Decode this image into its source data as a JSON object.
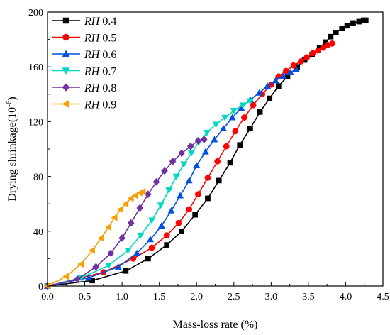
{
  "chart_data": {
    "type": "line",
    "xlabel": "Mass-loss rate (%)",
    "ylabel_main": "Drying shrinkage(10",
    "ylabel_sup": "-6",
    "ylabel_close": ")",
    "xlim": [
      0,
      4.5
    ],
    "ylim": [
      0,
      200
    ],
    "x_ticks": [
      0.0,
      0.5,
      1.0,
      1.5,
      2.0,
      2.5,
      3.0,
      3.5,
      4.0,
      4.5
    ],
    "x_tick_labels": [
      "0.0",
      "0.5",
      "1.0",
      "1.5",
      "2.0",
      "2.5",
      "3.0",
      "3.5",
      "4.0",
      "4.5"
    ],
    "y_ticks": [
      0,
      40,
      80,
      120,
      160,
      200
    ],
    "y_tick_labels": [
      "0",
      "40",
      "80",
      "120",
      "160",
      "200"
    ],
    "grid": false,
    "legend_position": "top-left",
    "series": [
      {
        "name": "0.4",
        "prefix": "RH",
        "color": "#000000",
        "marker": "square",
        "x": [
          0.0,
          0.6,
          1.05,
          1.35,
          1.6,
          1.8,
          1.98,
          2.15,
          2.3,
          2.45,
          2.58,
          2.72,
          2.85,
          2.98,
          3.1,
          3.22,
          3.35,
          3.45,
          3.55,
          3.65,
          3.73,
          3.8,
          3.87,
          3.95,
          4.02,
          4.1,
          4.18,
          4.24,
          4.27
        ],
        "y": [
          0,
          4,
          11,
          20,
          30,
          40,
          52,
          64,
          77,
          90,
          103,
          115,
          127,
          137,
          146,
          153,
          160,
          165,
          169,
          174,
          178,
          182,
          185,
          188,
          190,
          192,
          193,
          194,
          194
        ]
      },
      {
        "name": "0.5",
        "prefix": "RH",
        "color": "#ff0000",
        "marker": "circle",
        "x": [
          0.0,
          0.75,
          1.15,
          1.4,
          1.6,
          1.76,
          1.9,
          2.02,
          2.15,
          2.28,
          2.4,
          2.52,
          2.64,
          2.76,
          2.88,
          3.0,
          3.1,
          3.2,
          3.3,
          3.4,
          3.48,
          3.56,
          3.63,
          3.7,
          3.76,
          3.82
        ],
        "y": [
          0,
          10,
          20,
          28,
          37,
          46,
          56,
          67,
          79,
          91,
          102,
          113,
          123,
          132,
          140,
          147,
          153,
          157,
          161,
          164,
          167,
          170,
          172,
          174,
          176,
          177
        ]
      },
      {
        "name": "0.6",
        "prefix": "RH",
        "color": "#0050e0",
        "marker": "triangle-up",
        "x": [
          0.0,
          0.55,
          0.95,
          1.2,
          1.38,
          1.53,
          1.66,
          1.78,
          1.9,
          2.0,
          2.12,
          2.24,
          2.36,
          2.48,
          2.6,
          2.72,
          2.84,
          2.95,
          3.06,
          3.16,
          3.26,
          3.34
        ],
        "y": [
          0,
          6,
          14,
          24,
          34,
          44,
          55,
          66,
          77,
          88,
          98,
          107,
          115,
          123,
          130,
          136,
          141,
          146,
          150,
          153,
          156,
          158
        ]
      },
      {
        "name": "0.7",
        "prefix": "RH",
        "color": "#00d8c0",
        "marker": "triangle-down",
        "x": [
          0.0,
          0.45,
          0.82,
          1.08,
          1.25,
          1.4,
          1.52,
          1.63,
          1.73,
          1.83,
          1.93,
          2.03,
          2.14,
          2.26,
          2.38,
          2.5,
          2.62,
          2.72
        ],
        "y": [
          0,
          6,
          15,
          26,
          37,
          48,
          59,
          70,
          80,
          89,
          97,
          105,
          112,
          118,
          123,
          128,
          132,
          135
        ]
      },
      {
        "name": "0.8",
        "prefix": "RH",
        "color": "#7030a0",
        "marker": "diamond",
        "x": [
          0.0,
          0.4,
          0.65,
          0.85,
          1.0,
          1.12,
          1.24,
          1.35,
          1.46,
          1.57,
          1.68,
          1.8,
          1.92,
          2.02,
          2.1
        ],
        "y": [
          0,
          5,
          14,
          24,
          35,
          46,
          57,
          67,
          76,
          84,
          91,
          97,
          102,
          106,
          107
        ]
      },
      {
        "name": "0.9",
        "prefix": "RH",
        "color": "#f5a000",
        "marker": "triangle-left",
        "x": [
          0.0,
          0.25,
          0.45,
          0.6,
          0.72,
          0.82,
          0.9,
          0.98,
          1.05,
          1.12,
          1.18,
          1.24,
          1.28
        ],
        "y": [
          0,
          7,
          16,
          26,
          35,
          43,
          50,
          56,
          60,
          64,
          66,
          68,
          69
        ]
      }
    ]
  }
}
